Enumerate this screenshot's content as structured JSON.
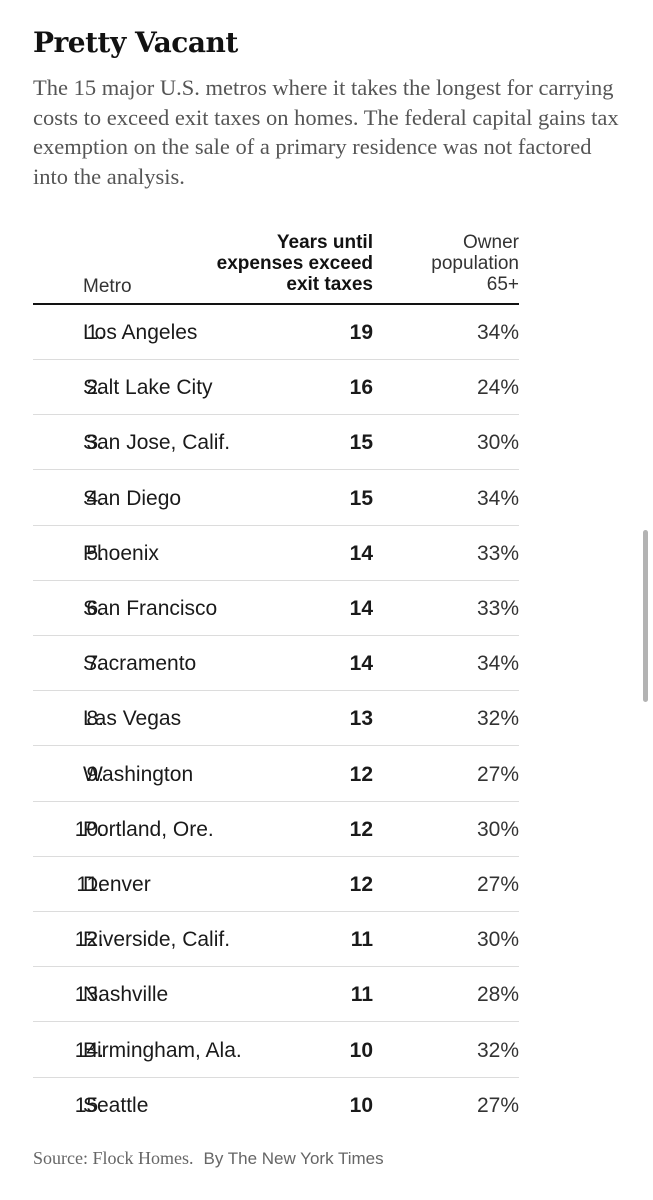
{
  "title": "Pretty Vacant",
  "subtitle": "The 15 major U.S. metros where it takes the longest for carrying costs to exceed exit taxes on homes. The federal capital gains tax exemption on the sale of a primary residence was not factored into the analysis.",
  "chart_data": {
    "type": "table",
    "columns": {
      "metro": "Metro",
      "years": "Years until expenses exceed exit taxes",
      "owner": "Owner population 65+"
    },
    "rows": [
      {
        "rank": "1.",
        "metro": "Los Angeles",
        "years": "19",
        "owner": "34%"
      },
      {
        "rank": "2.",
        "metro": "Salt Lake City",
        "years": "16",
        "owner": "24%"
      },
      {
        "rank": "3.",
        "metro": "San Jose, Calif.",
        "years": "15",
        "owner": "30%"
      },
      {
        "rank": "4.",
        "metro": "San Diego",
        "years": "15",
        "owner": "34%"
      },
      {
        "rank": "5.",
        "metro": "Phoenix",
        "years": "14",
        "owner": "33%"
      },
      {
        "rank": "6.",
        "metro": "San Francisco",
        "years": "14",
        "owner": "33%"
      },
      {
        "rank": "7.",
        "metro": "Sacramento",
        "years": "14",
        "owner": "34%"
      },
      {
        "rank": "8.",
        "metro": "Las Vegas",
        "years": "13",
        "owner": "32%"
      },
      {
        "rank": "9.",
        "metro": "Washington",
        "years": "12",
        "owner": "27%"
      },
      {
        "rank": "10.",
        "metro": "Portland, Ore.",
        "years": "12",
        "owner": "30%"
      },
      {
        "rank": "11.",
        "metro": "Denver",
        "years": "12",
        "owner": "27%"
      },
      {
        "rank": "12.",
        "metro": "Riverside, Calif.",
        "years": "11",
        "owner": "30%"
      },
      {
        "rank": "13.",
        "metro": "Nashville",
        "years": "11",
        "owner": "28%"
      },
      {
        "rank": "14.",
        "metro": "Birmingham, Ala.",
        "years": "10",
        "owner": "32%"
      },
      {
        "rank": "15.",
        "metro": "Seattle",
        "years": "10",
        "owner": "27%"
      }
    ]
  },
  "header": {
    "metro": "Metro",
    "years_lines": [
      "Years until",
      "expenses exceed",
      "exit taxes"
    ],
    "owner_lines": [
      "Owner",
      "population",
      "65+"
    ]
  },
  "source": {
    "text": "Source: Flock Homes.",
    "credit": "By The New York Times"
  }
}
